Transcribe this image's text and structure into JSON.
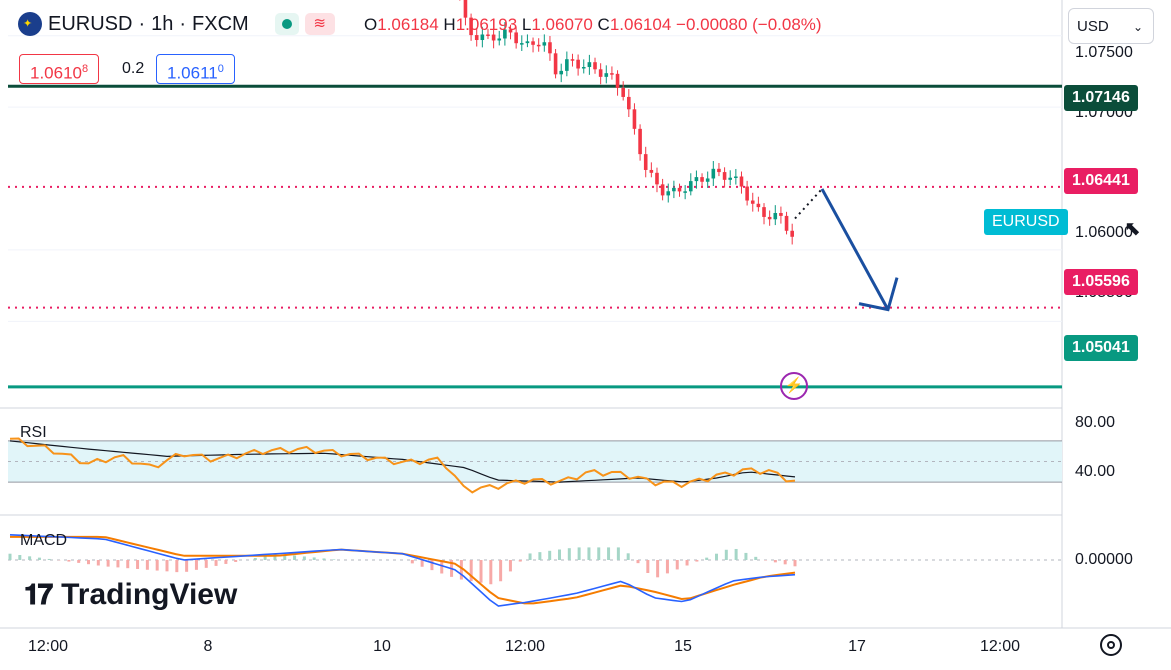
{
  "header": {
    "symbol": "EURUSD",
    "sep": "·",
    "interval": "1h",
    "exchange": "FXCM",
    "ohlc": {
      "o_label": "O",
      "o": "1.06184",
      "h_label": "H",
      "h": "1.06193",
      "l_label": "L",
      "l": "1.06070",
      "c_label": "C",
      "c": "1.06104",
      "change": "−0.00080 (−0.08%)"
    },
    "bid": "1.0610",
    "bid_sup": "8",
    "spread": "0.2",
    "ask": "1.0611",
    "ask_sup": "0",
    "currency": "USD"
  },
  "axis": {
    "price_labels": [
      "1.07500",
      "1.07000",
      "1.06000",
      "1.05500"
    ],
    "level_tags": [
      {
        "price": 1.07146,
        "label": "1.07146",
        "color": "#0b4d3a",
        "style": "solid"
      },
      {
        "price": 1.06441,
        "label": "1.06441",
        "color": "#e91e63",
        "style": "dotted"
      },
      {
        "price": 1.05596,
        "label": "1.05596",
        "color": "#e91e63",
        "style": "dotted"
      },
      {
        "price": 1.05041,
        "label": "1.05041",
        "color": "#089981",
        "style": "solid"
      }
    ],
    "symbol_tag": "EURUSD",
    "x_labels": [
      "12:00",
      "8",
      "10",
      "12:00",
      "15",
      "17",
      "12:00"
    ]
  },
  "rsi": {
    "title": "RSI",
    "labels": [
      "80.00",
      "40.00"
    ]
  },
  "macd": {
    "title": "MACD",
    "labels": [
      "0.00000"
    ]
  },
  "branding": {
    "name": "TradingView"
  },
  "colors": {
    "up": "#089981",
    "down": "#f23645",
    "rsi": "#f7931a",
    "macd": "#2962ff",
    "signal": "#f57c00",
    "arrow": "#1a4fa0",
    "band": "#e1f5f9",
    "tag_cyan": "#00bcd4"
  },
  "chart_data": {
    "type": "candlestick",
    "title": "EURUSD · 1h · FXCM",
    "ylim": [
      1.049,
      1.0775
    ],
    "price_path": [
      [
        0.0,
        1.0795
      ],
      [
        0.04,
        1.0752
      ],
      [
        0.1,
        1.0748
      ],
      [
        0.16,
        1.0752
      ],
      [
        0.22,
        1.0742
      ],
      [
        0.26,
        1.0748
      ],
      [
        0.3,
        1.0725
      ],
      [
        0.34,
        1.0732
      ],
      [
        0.4,
        1.0728
      ],
      [
        0.46,
        1.0722
      ],
      [
        0.5,
        1.071
      ],
      [
        0.53,
        1.0685
      ],
      [
        0.57,
        1.0655
      ],
      [
        0.61,
        1.0642
      ],
      [
        0.65,
        1.064
      ],
      [
        0.69,
        1.0645
      ],
      [
        0.73,
        1.065
      ],
      [
        0.77,
        1.0654
      ],
      [
        0.81,
        1.0652
      ],
      [
        0.85,
        1.0645
      ],
      [
        0.89,
        1.0628
      ],
      [
        0.93,
        1.0624
      ],
      [
        0.97,
        1.0622
      ],
      [
        1.0,
        1.061
      ]
    ],
    "projection": {
      "from": 1.06441,
      "to": 1.05596
    },
    "rsi_path": [
      [
        0.0,
        72
      ],
      [
        0.05,
        62
      ],
      [
        0.1,
        48
      ],
      [
        0.14,
        55
      ],
      [
        0.18,
        44
      ],
      [
        0.22,
        58
      ],
      [
        0.26,
        52
      ],
      [
        0.32,
        60
      ],
      [
        0.38,
        62
      ],
      [
        0.44,
        56
      ],
      [
        0.5,
        49
      ],
      [
        0.55,
        52
      ],
      [
        0.58,
        22
      ],
      [
        0.62,
        26
      ],
      [
        0.66,
        32
      ],
      [
        0.7,
        30
      ],
      [
        0.74,
        40
      ],
      [
        0.78,
        38
      ],
      [
        0.82,
        30
      ],
      [
        0.86,
        28
      ],
      [
        0.9,
        36
      ],
      [
        0.94,
        42
      ],
      [
        0.97,
        40
      ],
      [
        1.0,
        30
      ]
    ],
    "rsi_ma_path": [
      [
        0.0,
        70
      ],
      [
        0.1,
        62
      ],
      [
        0.2,
        55
      ],
      [
        0.3,
        57
      ],
      [
        0.4,
        58
      ],
      [
        0.5,
        52
      ],
      [
        0.58,
        44
      ],
      [
        0.62,
        32
      ],
      [
        0.7,
        30
      ],
      [
        0.8,
        34
      ],
      [
        0.86,
        30
      ],
      [
        0.9,
        34
      ],
      [
        0.94,
        40
      ],
      [
        1.0,
        35
      ]
    ],
    "macd_path": [
      [
        0.0,
        0.0012
      ],
      [
        0.12,
        0.001
      ],
      [
        0.22,
        0.0
      ],
      [
        0.34,
        0.0003
      ],
      [
        0.42,
        0.0005
      ],
      [
        0.5,
        0.0003
      ],
      [
        0.57,
        -0.0005
      ],
      [
        0.62,
        -0.0022
      ],
      [
        0.66,
        -0.002
      ],
      [
        0.72,
        -0.0016
      ],
      [
        0.78,
        -0.001
      ],
      [
        0.82,
        -0.0018
      ],
      [
        0.86,
        -0.002
      ],
      [
        0.92,
        -0.001
      ],
      [
        0.96,
        -0.0008
      ],
      [
        1.0,
        -0.0007
      ]
    ],
    "signal_path": [
      [
        0.0,
        0.0011
      ],
      [
        0.12,
        0.0011
      ],
      [
        0.22,
        0.0002
      ],
      [
        0.34,
        0.0002
      ],
      [
        0.42,
        0.0005
      ],
      [
        0.5,
        0.0003
      ],
      [
        0.57,
        -0.0002
      ],
      [
        0.62,
        -0.0018
      ],
      [
        0.66,
        -0.0021
      ],
      [
        0.72,
        -0.0018
      ],
      [
        0.78,
        -0.0012
      ],
      [
        0.82,
        -0.0015
      ],
      [
        0.86,
        -0.0019
      ],
      [
        0.92,
        -0.0012
      ],
      [
        0.96,
        -0.0008
      ],
      [
        1.0,
        -0.0006
      ]
    ]
  }
}
